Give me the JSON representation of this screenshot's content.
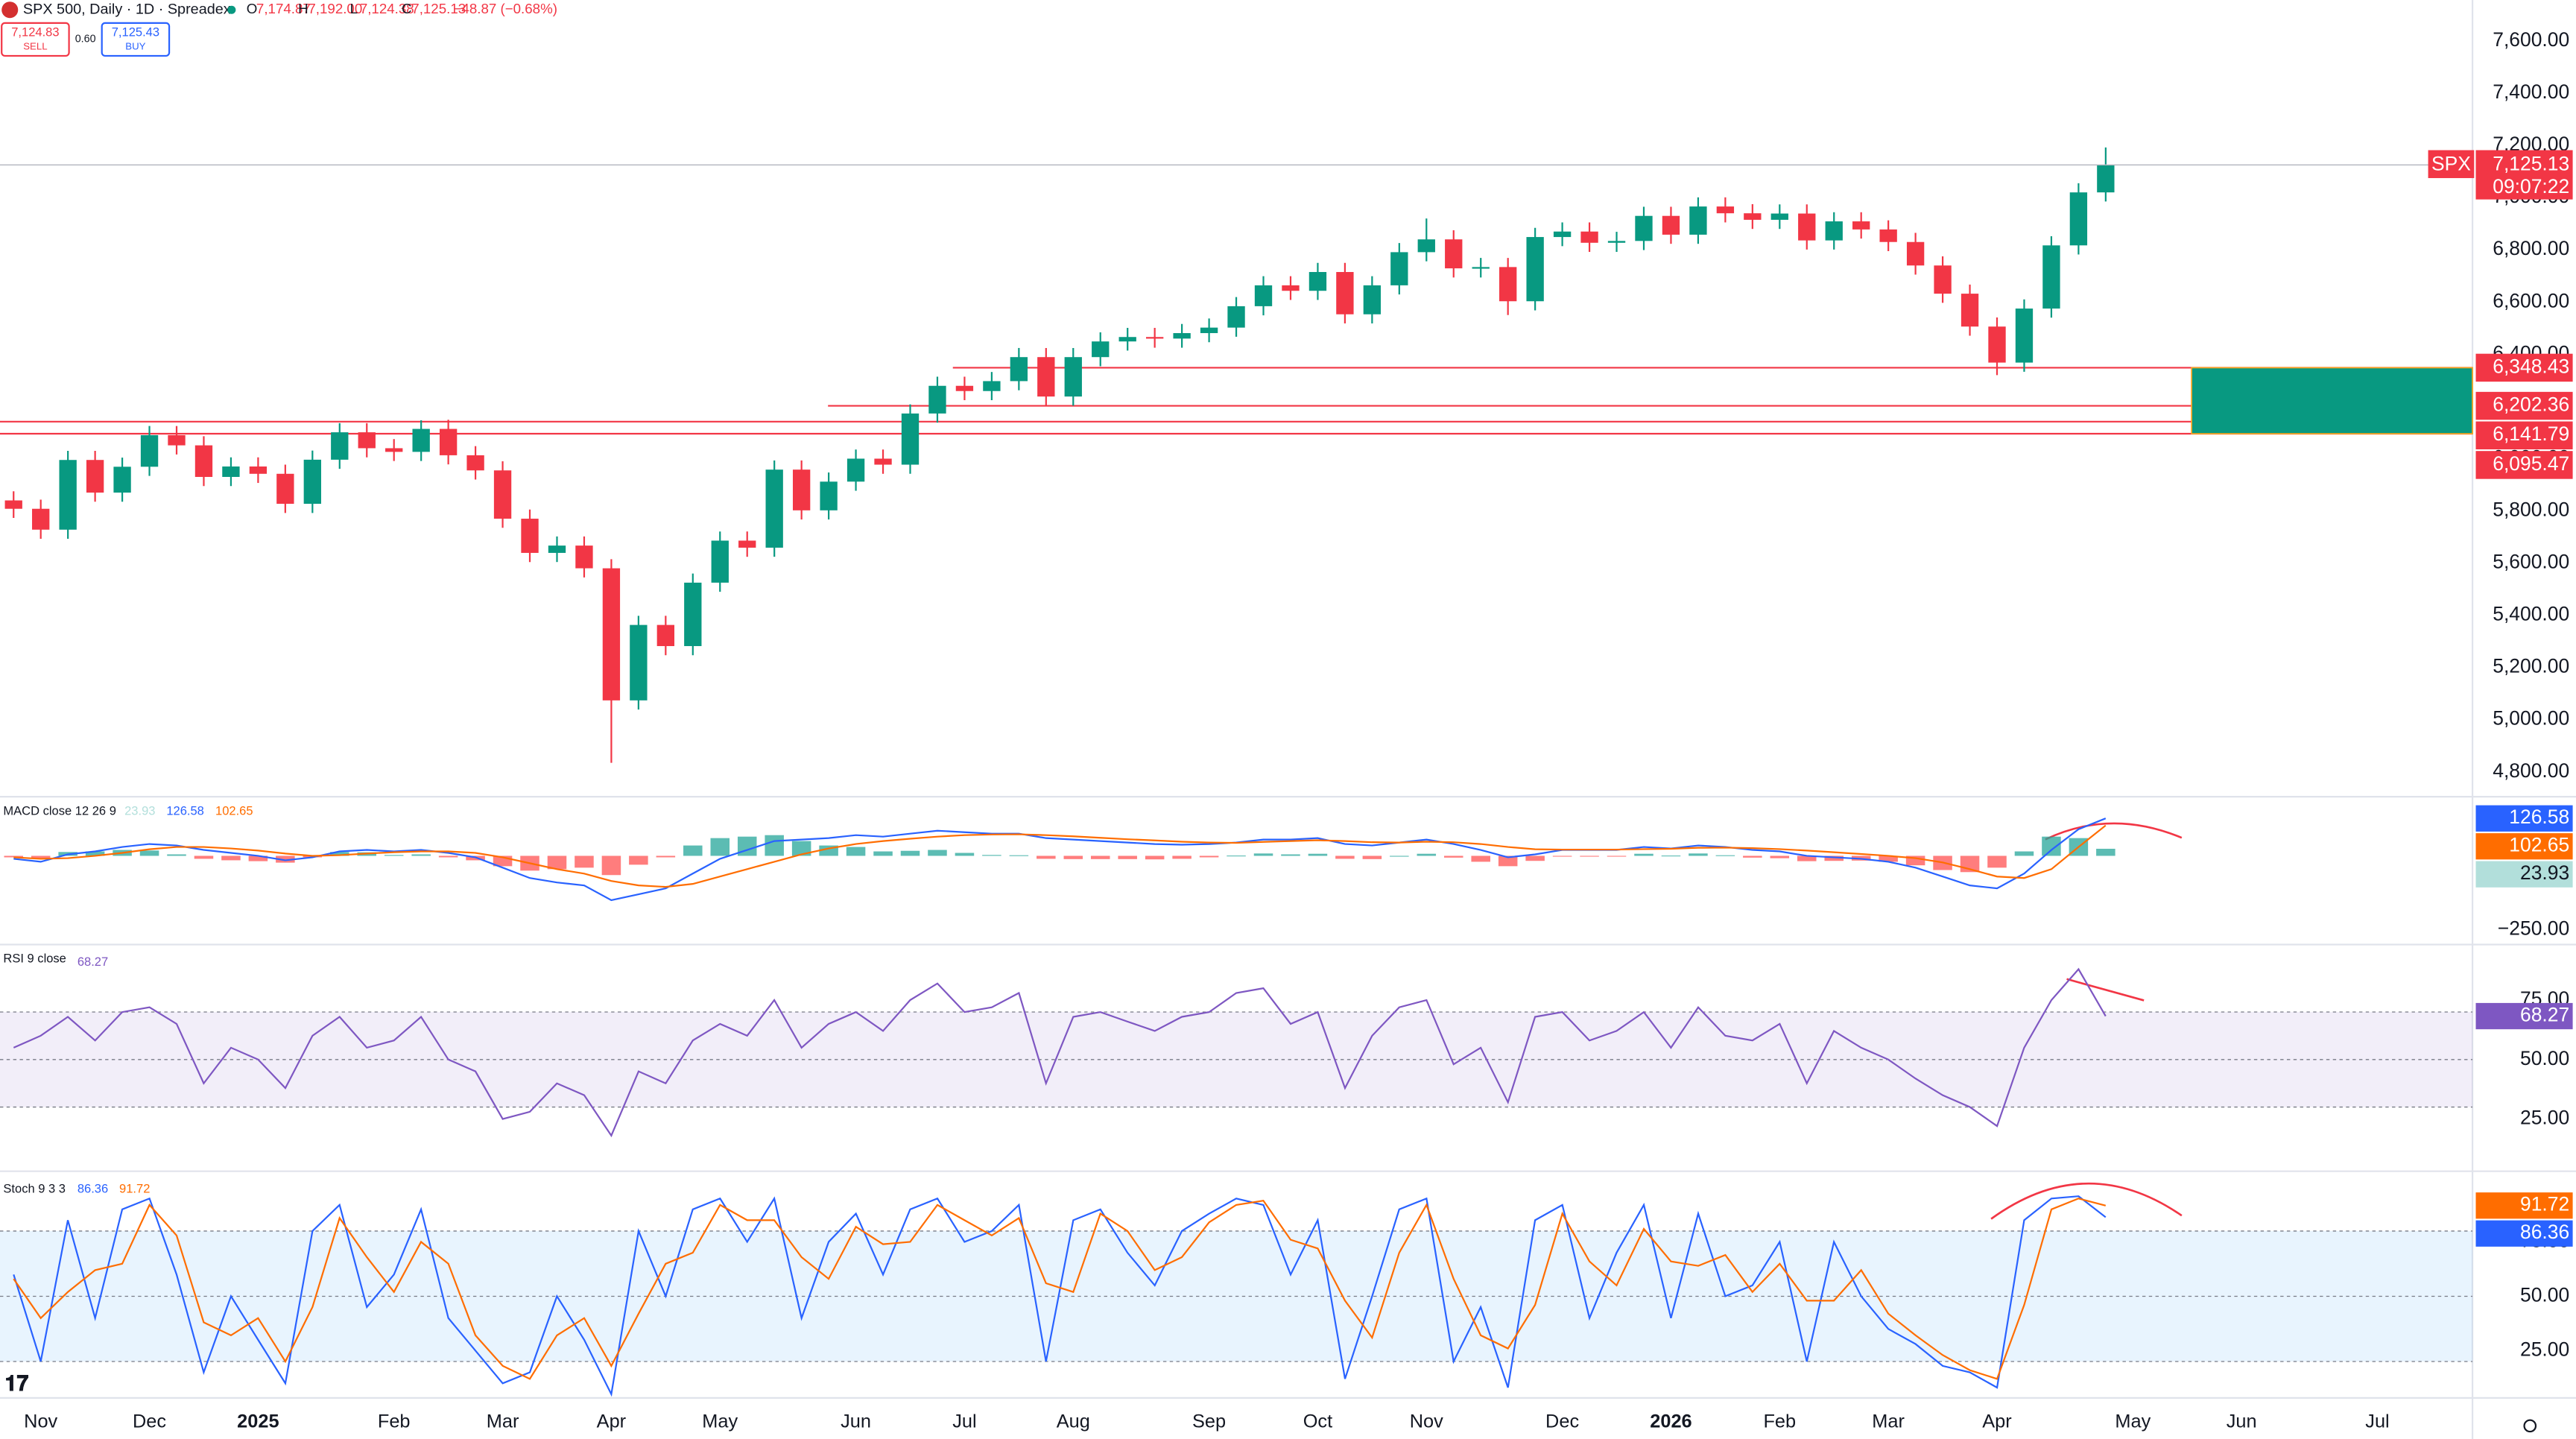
{
  "header": {
    "symbol": "SPX 500, Daily · 1D · Spreadex",
    "ohlc": [
      {
        "k": "O",
        "v": "7,174.87"
      },
      {
        "k": "H",
        "v": "7,192.00"
      },
      {
        "k": "L",
        "v": "7,124.38"
      },
      {
        "k": "C",
        "v": "7,125.13"
      }
    ],
    "change": "−48.87 (−0.68%)",
    "sell": {
      "price": "7,124.83",
      "label": "SELL"
    },
    "spread": "0.60",
    "buy": {
      "price": "7,125.43",
      "label": "BUY"
    }
  },
  "chart_data": [
    {
      "type": "candlestick",
      "up_color": "#089981",
      "down_color": "#f23645",
      "categories": [
        null,
        "Nov",
        null,
        null,
        null,
        "Dec",
        null,
        null,
        null,
        "2025",
        null,
        null,
        null,
        null,
        "Feb",
        null,
        null,
        null,
        "Mar",
        null,
        null,
        null,
        "Apr",
        null,
        null,
        null,
        "May",
        null,
        null,
        null,
        null,
        "Jun",
        null,
        null,
        null,
        "Jul",
        null,
        null,
        null,
        "Aug",
        null,
        null,
        null,
        null,
        "Sep",
        null,
        null,
        null,
        "Oct",
        null,
        null,
        null,
        "Nov",
        null,
        null,
        null,
        null,
        "Dec",
        null,
        null,
        null,
        "2026",
        null,
        null,
        null,
        "Feb",
        null,
        null,
        null,
        "Mar",
        null,
        null,
        null,
        "Apr",
        null,
        null,
        null,
        null,
        "May",
        null,
        null,
        null,
        "Jun",
        null,
        null,
        null,
        null,
        "Jul",
        null,
        null,
        null
      ],
      "open": [
        5840,
        5808,
        5728,
        5995,
        5870,
        5969,
        6090,
        6051,
        5930,
        5970,
        5942,
        5827,
        5996,
        6101,
        6040,
        6026,
        6114,
        6013,
        5955,
        5770,
        5639,
        5667,
        5580,
        5074,
        5363,
        5282,
        5525,
        5686,
        5659,
        5958,
        5802,
        5912,
        6000,
        5977,
        6173,
        6279,
        6259,
        6297,
        6389,
        6238,
        6389,
        6449,
        6466,
        6460,
        6481,
        6502,
        6584,
        6664,
        6643,
        6715,
        6553,
        6664,
        6791,
        6840,
        6729,
        6734,
        6603,
        6849,
        6870,
        6827,
        6834,
        6930,
        6858,
        6966,
        6940,
        6915,
        6939,
        6836,
        6909,
        6878,
        6830,
        6740,
        6632,
        6506,
        6368,
        6575,
        6817,
        7020,
        null,
        null,
        null,
        null,
        null,
        null,
        null,
        null,
        null,
        null,
        null,
        null,
        null
      ],
      "high": [
        5875,
        5843,
        6030,
        6030,
        6004,
        6125,
        6125,
        6086,
        6005,
        6005,
        5977,
        6031,
        6136,
        6136,
        6075,
        6147,
        6149,
        6048,
        5990,
        5805,
        5702,
        5702,
        5615,
        5398,
        5398,
        5560,
        5721,
        5721,
        5993,
        5993,
        5947,
        6035,
        6035,
        6208,
        6314,
        6314,
        6332,
        6424,
        6424,
        6424,
        6484,
        6501,
        6501,
        6516,
        6537,
        6619,
        6699,
        6699,
        6750,
        6750,
        6699,
        6826,
        6920,
        6875,
        6769,
        6769,
        6884,
        6905,
        6905,
        6869,
        6965,
        6965,
        7001,
        7001,
        6975,
        6974,
        6974,
        6944,
        6944,
        6913,
        6865,
        6775,
        6667,
        6541,
        6610,
        6852,
        7055,
        7192,
        null,
        null,
        null,
        null,
        null,
        null,
        null,
        null,
        null,
        null,
        null,
        null,
        null
      ],
      "low": [
        5773,
        5693,
        5693,
        5835,
        5835,
        5934,
        6016,
        5895,
        5895,
        5907,
        5792,
        5792,
        5961,
        6005,
        5991,
        5991,
        5978,
        5920,
        5735,
        5604,
        5604,
        5545,
        4835,
        5039,
        5247,
        5247,
        5490,
        5624,
        5624,
        5767,
        5767,
        5877,
        5942,
        5942,
        6138,
        6224,
        6224,
        6262,
        6203,
        6203,
        6354,
        6414,
        6425,
        6425,
        6446,
        6467,
        6549,
        6608,
        6608,
        6518,
        6518,
        6629,
        6756,
        6694,
        6694,
        6550,
        6568,
        6814,
        6792,
        6792,
        6799,
        6823,
        6823,
        6905,
        6880,
        6880,
        6801,
        6801,
        6843,
        6795,
        6705,
        6597,
        6471,
        6320,
        6333,
        6540,
        6782,
        6985,
        null,
        null,
        null,
        null,
        null,
        null,
        null,
        null,
        null,
        null,
        null,
        null,
        null
      ],
      "close": [
        5808,
        5728,
        5995,
        5870,
        5969,
        6090,
        6051,
        5930,
        5970,
        5942,
        5827,
        5996,
        6101,
        6040,
        6026,
        6114,
        6013,
        5955,
        5770,
        5639,
        5667,
        5580,
        5074,
        5363,
        5282,
        5525,
        5686,
        5659,
        5958,
        5802,
        5912,
        6000,
        5977,
        6173,
        6279,
        6259,
        6297,
        6389,
        6238,
        6389,
        6449,
        6466,
        6460,
        6481,
        6502,
        6584,
        6664,
        6643,
        6715,
        6553,
        6664,
        6791,
        6840,
        6729,
        6734,
        6603,
        6849,
        6870,
        6827,
        6834,
        6930,
        6858,
        6966,
        6940,
        6915,
        6939,
        6836,
        6909,
        6878,
        6830,
        6740,
        6632,
        6506,
        6368,
        6575,
        6817,
        7020,
        7125.13,
        null,
        null,
        null,
        null,
        null,
        null,
        null,
        null,
        null,
        null,
        null,
        null,
        null
      ],
      "last_label": "7,125.13",
      "symbol_badge": "SPX",
      "countdown": "09:07:22",
      "levels": [
        {
          "value": 6348.43,
          "label": "6,348.43"
        },
        {
          "value": 6202.36,
          "label": "6,202.36"
        },
        {
          "value": 6141.79,
          "label": "6,141.79"
        },
        {
          "value": 6095.47,
          "label": "6,095.47"
        }
      ],
      "level_color": "#f23645",
      "zone_color": "#089981",
      "ylim": [
        4705,
        7757
      ],
      "yticks": [
        {
          "value": 4800,
          "label": "4,800.00"
        },
        {
          "value": 5000,
          "label": "5,000.00"
        },
        {
          "value": 5200,
          "label": "5,200.00"
        },
        {
          "value": 5400,
          "label": "5,400.00"
        },
        {
          "value": 5600,
          "label": "5,600.00"
        },
        {
          "value": 5800,
          "label": "5,800.00"
        },
        {
          "value": 6000,
          "label": "6,000.00"
        },
        {
          "value": 6200,
          "label": "6,200.00"
        },
        {
          "value": 6400,
          "label": "6,400.00"
        },
        {
          "value": 6600,
          "label": "6,600.00"
        },
        {
          "value": 6800,
          "label": "6,800.00"
        },
        {
          "value": 7000,
          "label": "7,000.00"
        },
        {
          "value": 7200,
          "label": "7,200.00"
        },
        {
          "value": 7400,
          "label": "7,400.00"
        },
        {
          "value": 7600,
          "label": "7,600.00"
        }
      ]
    },
    {
      "type": "line",
      "title": "MACD close 12 26 9",
      "ylim": [
        -300,
        200
      ],
      "yticks": [
        {
          "value": -250,
          "label": "−250.00"
        }
      ],
      "series": [
        {
          "kind": "histogram",
          "color": "#26a69a",
          "negative_color": "#ff5252",
          "badge_color": "#b2dfdb",
          "values": [
            -5,
            -10,
            13,
            15,
            20,
            18,
            5,
            -10,
            -15,
            -18,
            -23,
            -5,
            13,
            12,
            3,
            5,
            -5,
            -15,
            -35,
            -50,
            -45,
            -40,
            -65,
            -30,
            -5,
            35,
            60,
            65,
            70,
            50,
            35,
            30,
            15,
            17,
            20,
            10,
            3,
            2,
            -10,
            -11,
            -11,
            -11,
            -12,
            -10,
            -5,
            1,
            8,
            5,
            7,
            -10,
            -11,
            0,
            7,
            -6,
            -20,
            -35,
            -17,
            -1,
            -1,
            -1,
            7,
            1,
            8,
            2,
            -6,
            -8,
            -18,
            -17,
            -16,
            -20,
            -32,
            -48,
            -55,
            -40,
            15,
            65,
            60,
            23.93,
            null,
            null,
            null,
            null,
            null,
            null,
            null,
            null,
            null,
            null,
            null,
            null,
            null
          ]
        },
        {
          "kind": "line",
          "color": "#2962ff",
          "values": [
            -10,
            -20,
            5,
            15,
            30,
            40,
            35,
            20,
            10,
            0,
            -15,
            -5,
            15,
            20,
            15,
            20,
            10,
            -5,
            -40,
            -75,
            -90,
            -100,
            -150,
            -130,
            -110,
            -60,
            -10,
            20,
            50,
            55,
            60,
            70,
            65,
            75,
            85,
            80,
            75,
            75,
            60,
            55,
            50,
            45,
            40,
            38,
            40,
            45,
            55,
            55,
            60,
            40,
            35,
            45,
            55,
            40,
            20,
            -5,
            5,
            20,
            20,
            20,
            30,
            25,
            35,
            30,
            20,
            15,
            0,
            -5,
            -10,
            -20,
            -40,
            -70,
            -100,
            -110,
            -60,
            20,
            90,
            126.58,
            null,
            null,
            null,
            null,
            null,
            null,
            null,
            null,
            null,
            null,
            null,
            null,
            null
          ]
        },
        {
          "kind": "line",
          "color": "#ff6d00",
          "values": [
            -5,
            -10,
            -8,
            0,
            10,
            22,
            30,
            30,
            25,
            18,
            8,
            0,
            2,
            8,
            12,
            15,
            15,
            10,
            -5,
            -25,
            -45,
            -60,
            -85,
            -100,
            -105,
            -95,
            -70,
            -45,
            -20,
            5,
            25,
            40,
            50,
            58,
            65,
            70,
            72,
            73,
            70,
            66,
            61,
            56,
            52,
            48,
            45,
            44,
            47,
            50,
            53,
            50,
            46,
            45,
            48,
            46,
            40,
            30,
            22,
            21,
            21,
            21,
            23,
            24,
            27,
            28,
            26,
            23,
            18,
            12,
            6,
            0,
            -8,
            -22,
            -45,
            -70,
            -75,
            -45,
            30,
            102.65,
            null,
            null,
            null,
            null,
            null,
            null,
            null,
            null,
            null,
            null,
            null,
            null,
            null
          ]
        }
      ]
    },
    {
      "type": "line",
      "title": "RSI 9 close",
      "ylim": [
        3,
        97
      ],
      "yticks": [
        {
          "value": 25,
          "label": "25.00"
        },
        {
          "value": 50,
          "label": "50.00"
        },
        {
          "value": 75,
          "label": "75.00"
        }
      ],
      "bands": [
        30,
        50,
        70
      ],
      "band_color": "#7e57c2",
      "series": [
        {
          "kind": "line",
          "color": "#7e57c2",
          "values": [
            55,
            60,
            68,
            58,
            70,
            72,
            65,
            40,
            55,
            50,
            38,
            60,
            68,
            55,
            58,
            68,
            50,
            45,
            25,
            28,
            40,
            35,
            18,
            45,
            40,
            58,
            65,
            60,
            75,
            55,
            65,
            70,
            62,
            75,
            82,
            70,
            72,
            78,
            40,
            68,
            70,
            66,
            62,
            68,
            70,
            78,
            80,
            65,
            70,
            38,
            60,
            72,
            75,
            48,
            55,
            32,
            68,
            70,
            58,
            62,
            70,
            55,
            72,
            60,
            58,
            65,
            40,
            62,
            55,
            50,
            42,
            35,
            30,
            22,
            55,
            75,
            88,
            68.27,
            null,
            null,
            null,
            null,
            null,
            null,
            null,
            null,
            null,
            null,
            null,
            null,
            null
          ]
        }
      ]
    },
    {
      "type": "line",
      "title": "Stoch 9 3 3",
      "ylim": [
        4,
        106
      ],
      "yticks": [
        {
          "value": 25,
          "label": "25.00"
        },
        {
          "value": 50,
          "label": "50.00"
        },
        {
          "value": 75,
          "label": "75.00"
        }
      ],
      "bands": [
        20,
        50,
        80
      ],
      "band_color": "#2196f3",
      "series": [
        {
          "kind": "line",
          "color": "#2962ff",
          "values": [
            60,
            20,
            85,
            40,
            90,
            95,
            60,
            15,
            50,
            30,
            10,
            80,
            92,
            45,
            60,
            90,
            40,
            25,
            10,
            15,
            50,
            30,
            5,
            80,
            50,
            90,
            95,
            75,
            95,
            40,
            75,
            88,
            60,
            90,
            95,
            75,
            80,
            92,
            20,
            85,
            90,
            70,
            55,
            80,
            88,
            95,
            92,
            60,
            85,
            12,
            50,
            90,
            95,
            20,
            45,
            8,
            85,
            92,
            40,
            70,
            92,
            40,
            88,
            50,
            55,
            75,
            20,
            75,
            50,
            35,
            28,
            18,
            15,
            8,
            85,
            95,
            96,
            86.36,
            null,
            null,
            null,
            null,
            null,
            null,
            null,
            null,
            null,
            null,
            null,
            null,
            null
          ]
        },
        {
          "kind": "line",
          "color": "#ff6d00",
          "values": [
            58,
            40,
            52,
            62,
            65,
            92,
            78,
            38,
            32,
            40,
            20,
            45,
            86,
            68,
            52,
            75,
            65,
            32,
            18,
            12,
            32,
            40,
            18,
            42,
            65,
            70,
            92,
            85,
            85,
            68,
            58,
            82,
            74,
            75,
            92,
            85,
            78,
            86,
            56,
            52,
            88,
            80,
            62,
            68,
            84,
            92,
            94,
            76,
            72,
            48,
            31,
            70,
            92,
            58,
            32,
            26,
            46,
            88,
            66,
            55,
            81,
            66,
            64,
            69,
            52,
            65,
            48,
            48,
            62,
            42,
            32,
            23,
            16,
            12,
            46,
            90,
            95,
            91.72,
            null,
            null,
            null,
            null,
            null,
            null,
            null,
            null,
            null,
            null,
            null,
            null,
            null
          ]
        }
      ]
    }
  ]
}
